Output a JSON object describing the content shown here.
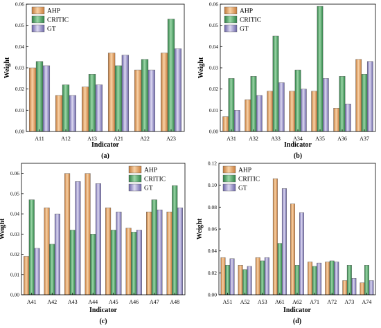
{
  "colors": {
    "AHP": "#e9a15b",
    "CRITIC": "#3fa35b",
    "GT": "#8a84c2",
    "axis": "#000000"
  },
  "chart_data": [
    {
      "type": "bar",
      "panel_label": "(a)",
      "xlabel": "Indicator",
      "ylabel": "Weight",
      "ylim": [
        0,
        0.06
      ],
      "yticks": [
        "0.00",
        "0.01",
        "0.02",
        "0.03",
        "0.04",
        "0.05",
        "0.06"
      ],
      "legend": "top-left",
      "categories": [
        "A11",
        "A12",
        "A13",
        "A21",
        "A22",
        "A23"
      ],
      "series": [
        {
          "name": "AHP",
          "values": [
            0.03,
            0.017,
            0.021,
            0.037,
            0.029,
            0.037
          ]
        },
        {
          "name": "CRITIC",
          "values": [
            0.033,
            0.022,
            0.027,
            0.031,
            0.034,
            0.053
          ]
        },
        {
          "name": "GT",
          "values": [
            0.031,
            0.017,
            0.022,
            0.036,
            0.029,
            0.039
          ]
        }
      ]
    },
    {
      "type": "bar",
      "panel_label": "(b)",
      "xlabel": "Indicator",
      "ylabel": "Weight",
      "ylim": [
        0,
        0.06
      ],
      "yticks": [
        "0.00",
        "0.01",
        "0.02",
        "0.03",
        "0.04",
        "0.05",
        "0.06"
      ],
      "legend": "top-left",
      "categories": [
        "A31",
        "A32",
        "A33",
        "A34",
        "A35",
        "A36",
        "A37"
      ],
      "series": [
        {
          "name": "AHP",
          "values": [
            0.007,
            0.015,
            0.019,
            0.019,
            0.019,
            0.011,
            0.034
          ]
        },
        {
          "name": "CRITIC",
          "values": [
            0.025,
            0.026,
            0.045,
            0.029,
            0.059,
            0.026,
            0.027
          ]
        },
        {
          "name": "GT",
          "values": [
            0.01,
            0.017,
            0.023,
            0.02,
            0.025,
            0.013,
            0.033
          ]
        }
      ]
    },
    {
      "type": "bar",
      "panel_label": "(c)",
      "xlabel": "Indicator",
      "ylabel": "Weight",
      "ylim": [
        0,
        0.065
      ],
      "yticks": [
        "0.00",
        "0.01",
        "0.02",
        "0.03",
        "0.04",
        "0.05",
        "0.06"
      ],
      "legend": "top-right",
      "categories": [
        "A41",
        "A42",
        "A43",
        "A44",
        "A45",
        "A46",
        "A47",
        "A48"
      ],
      "series": [
        {
          "name": "AHP",
          "values": [
            0.019,
            0.043,
            0.06,
            0.06,
            0.043,
            0.033,
            0.041,
            0.041
          ]
        },
        {
          "name": "CRITIC",
          "values": [
            0.047,
            0.025,
            0.032,
            0.03,
            0.032,
            0.031,
            0.047,
            0.054
          ]
        },
        {
          "name": "GT",
          "values": [
            0.023,
            0.04,
            0.056,
            0.055,
            0.041,
            0.032,
            0.042,
            0.043
          ]
        }
      ]
    },
    {
      "type": "bar",
      "panel_label": "(d)",
      "xlabel": "Indicator",
      "ylabel": "Weight",
      "ylim": [
        0,
        0.12
      ],
      "yticks": [
        "0.00",
        "0.02",
        "0.04",
        "0.06",
        "0.08",
        "0.10",
        "0.12"
      ],
      "legend": "top-left",
      "categories": [
        "A51",
        "A52",
        "A53",
        "A61",
        "A62",
        "A71",
        "A72",
        "A73",
        "A74"
      ],
      "series": [
        {
          "name": "AHP",
          "values": [
            0.034,
            0.027,
            0.034,
            0.106,
            0.083,
            0.03,
            0.03,
            0.013,
            0.011
          ]
        },
        {
          "name": "CRITIC",
          "values": [
            0.027,
            0.023,
            0.031,
            0.047,
            0.027,
            0.026,
            0.031,
            0.027,
            0.027
          ]
        },
        {
          "name": "GT",
          "values": [
            0.033,
            0.026,
            0.034,
            0.097,
            0.075,
            0.029,
            0.03,
            0.015,
            0.013
          ]
        }
      ]
    }
  ]
}
